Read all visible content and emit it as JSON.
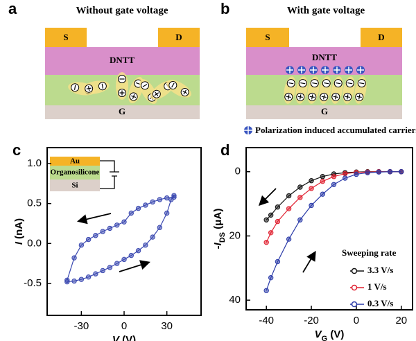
{
  "panels": {
    "a": {
      "label": "a",
      "title": "Without gate voltage",
      "source": "S",
      "drain": "D",
      "semiconductor": "DNTT",
      "gate": "G"
    },
    "b": {
      "label": "b",
      "title": "With gate voltage",
      "source": "S",
      "drain": "D",
      "semiconductor": "DNTT",
      "gate": "G",
      "legend": "Polarization induced  accumulated carriers"
    }
  },
  "chart_data": [
    {
      "type": "scatter",
      "panel_label": "c",
      "xlabel": [
        "V",
        " (V)"
      ],
      "ylabel": [
        "I",
        " (nA)"
      ],
      "inset_layers": [
        "Au",
        "Organosilicone",
        "Si"
      ],
      "xlim": [
        -54,
        54
      ],
      "xticks": [
        -30,
        0,
        30
      ],
      "ylim": [
        -0.9,
        1.2
      ],
      "yticks": [
        {
          "value": -0.5,
          "label": "-0.5"
        },
        {
          "value": 0,
          "label": "0.0"
        },
        0.5,
        {
          "value": 1,
          "label": "1.0"
        }
      ],
      "series": [
        {
          "name": null,
          "color": "#3a48b0",
          "x": [
            -40,
            -35,
            -30,
            -25,
            -20,
            -15,
            -10,
            -5,
            0,
            5,
            10,
            15,
            20,
            25,
            30,
            33,
            35,
            35,
            30,
            25,
            20,
            15,
            10,
            5,
            0,
            -5,
            -10,
            -15,
            -20,
            -25,
            -30,
            -35,
            -40
          ],
          "values": [
            -0.48,
            -0.47,
            -0.45,
            -0.42,
            -0.38,
            -0.34,
            -0.3,
            -0.25,
            -0.2,
            -0.15,
            -0.09,
            -0.02,
            0.08,
            0.2,
            0.38,
            0.55,
            0.6,
            0.58,
            0.57,
            0.55,
            0.52,
            0.48,
            0.44,
            0.38,
            0.27,
            0.23,
            0.19,
            0.15,
            0.1,
            0.05,
            -0.02,
            -0.18,
            -0.46
          ]
        }
      ]
    },
    {
      "type": "line",
      "panel_label": "d",
      "xlabel": [
        "V",
        "G",
        " (V)"
      ],
      "ylabel": [
        "-I",
        "DS",
        " (μA)"
      ],
      "legend_title": "Sweeping rate",
      "y_inverted": true,
      "xlim": [
        -49,
        25
      ],
      "xticks": [
        -40,
        -20,
        0,
        20
      ],
      "ylim": [
        -7.5,
        43
      ],
      "yticks": [
        0,
        20,
        40
      ],
      "x": [
        20,
        15,
        10,
        5,
        0,
        -5,
        -10,
        -15,
        -20,
        -25,
        -30,
        -35,
        -38,
        -40
      ],
      "series": [
        {
          "name": "3.3 V/s",
          "color": "#111111",
          "values": [
            0,
            0,
            0,
            0,
            0.1,
            0.3,
            0.7,
            1.5,
            2.8,
            4.8,
            7.5,
            11,
            13.5,
            15
          ]
        },
        {
          "name": "1 V/s",
          "color": "#e02030",
          "values": [
            0,
            0,
            0,
            0.1,
            0.2,
            0.6,
            1.5,
            3,
            5.2,
            8,
            11.5,
            15.5,
            19,
            22
          ]
        },
        {
          "name": "0.3 V/s",
          "color": "#2a3aa8",
          "values": [
            0,
            0,
            0.1,
            0.3,
            0.8,
            2,
            4,
            7,
            10.5,
            15,
            21,
            28,
            33,
            37
          ]
        }
      ]
    }
  ]
}
